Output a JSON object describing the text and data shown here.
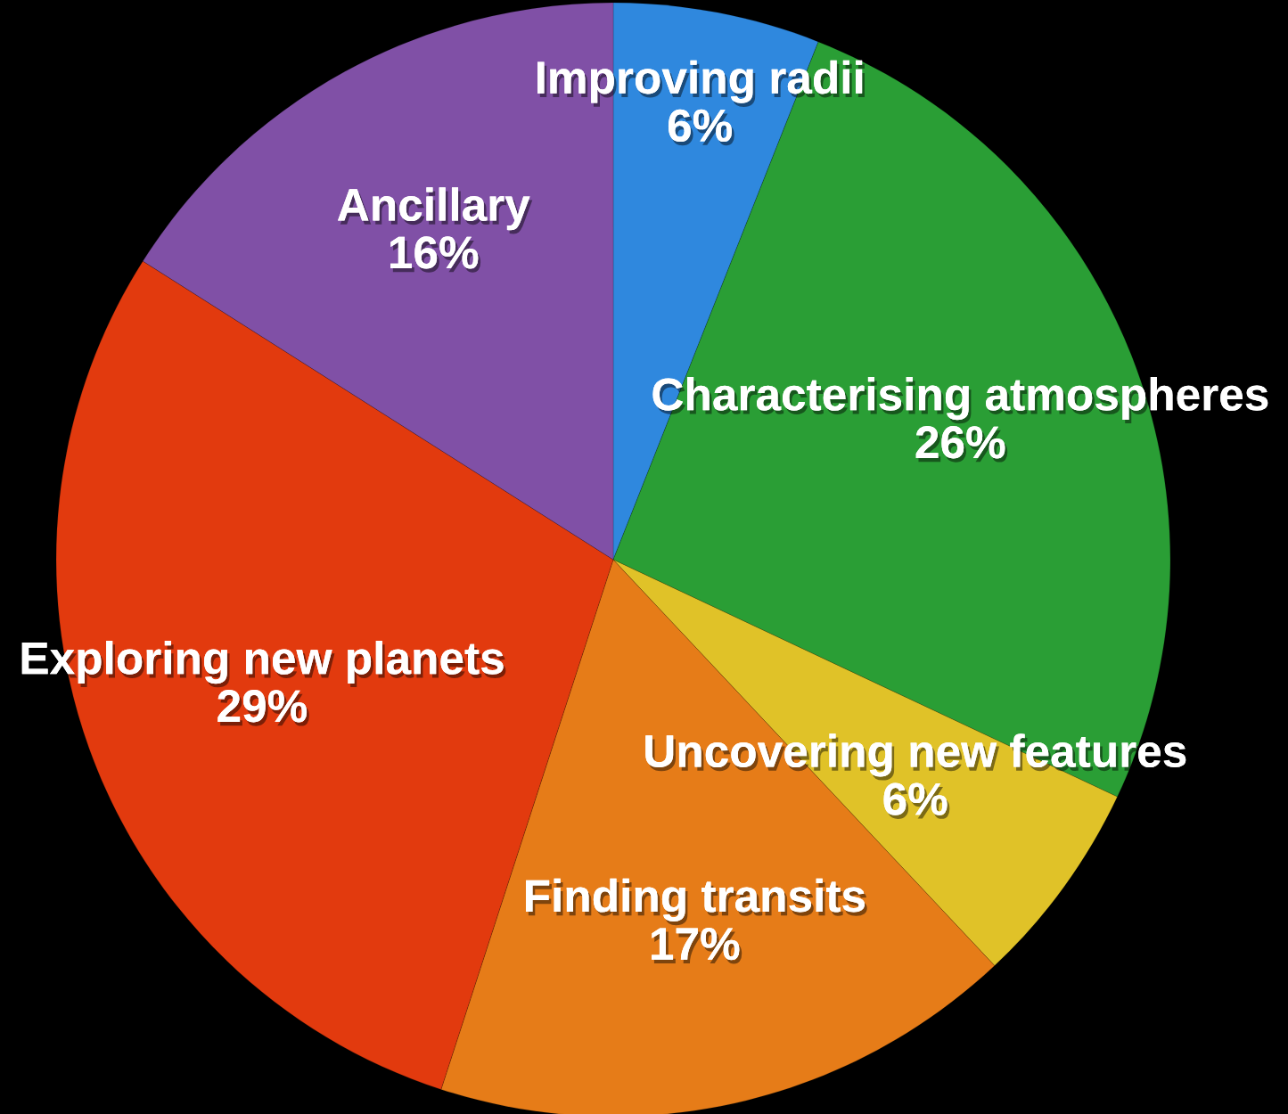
{
  "chart_data": {
    "type": "pie",
    "categories": [
      "Improving radii",
      "Characterising atmospheres",
      "Uncovering new features",
      "Finding transits",
      "Exploring new planets",
      "Ancillary"
    ],
    "values": [
      6,
      26,
      6,
      17,
      29,
      16
    ],
    "colors": [
      "#2f88de",
      "#2a9e35",
      "#e0c228",
      "#e67c18",
      "#e23a0e",
      "#8050a6"
    ],
    "value_labels": [
      "6%",
      "26%",
      "6%",
      "17%",
      "29%",
      "16%"
    ]
  }
}
